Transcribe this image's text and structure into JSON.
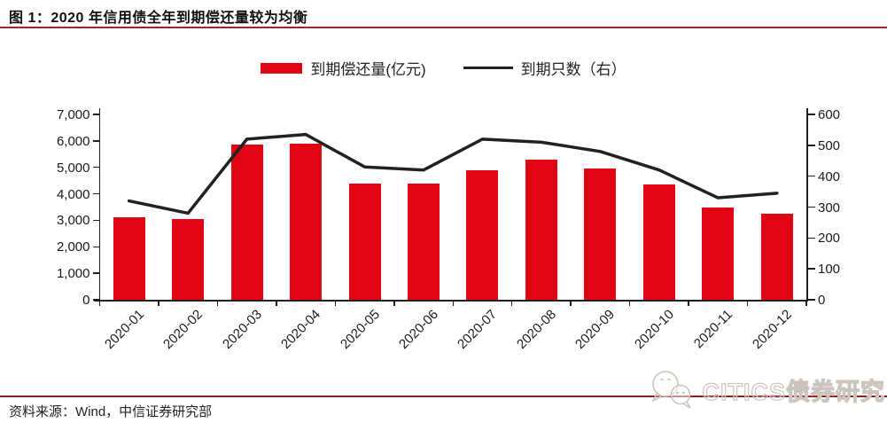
{
  "figure": {
    "title": "图 1：2020 年信用债全年到期偿还量较为均衡",
    "source_note": "资料来源：Wind，中信证券研究部",
    "watermark_text": "CITICS债券研究"
  },
  "colors": {
    "bar": "#E10514",
    "line": "#232020",
    "rule_top": "#9C2629",
    "rule_bottom": "#8F1D23",
    "axis": "#1F1F1F",
    "watermark": "#CCC5BD"
  },
  "chart_data": {
    "type": "combo-bar-line",
    "title": "2020 年信用债全年到期偿还量较为均衡",
    "categories": [
      "2020-01",
      "2020-02",
      "2020-03",
      "2020-04",
      "2020-05",
      "2020-06",
      "2020-07",
      "2020-08",
      "2020-09",
      "2020-10",
      "2020-11",
      "2020-12"
    ],
    "series": [
      {
        "name": "到期偿还量(亿元)",
        "type": "bar",
        "axis": "left",
        "color": "#E10514",
        "values": [
          3100,
          3050,
          5850,
          5900,
          4400,
          4400,
          4900,
          5300,
          4950,
          4350,
          3500,
          3250
        ]
      },
      {
        "name": "到期只数（右）",
        "type": "line",
        "axis": "right",
        "color": "#232020",
        "values": [
          320,
          280,
          520,
          535,
          430,
          420,
          520,
          510,
          480,
          420,
          330,
          345
        ]
      }
    ],
    "left_axis": {
      "min": 0,
      "max": 7000,
      "step": 1000,
      "tick_labels": [
        "7,000",
        "6,000",
        "5,000",
        "4,000",
        "3,000",
        "2,000",
        "1,000",
        "0"
      ]
    },
    "right_axis": {
      "min": 0,
      "max": 600,
      "step": 100,
      "tick_labels": [
        "600",
        "500",
        "400",
        "300",
        "200",
        "100",
        "0"
      ]
    },
    "legend_position": "top-center",
    "grid": false
  }
}
